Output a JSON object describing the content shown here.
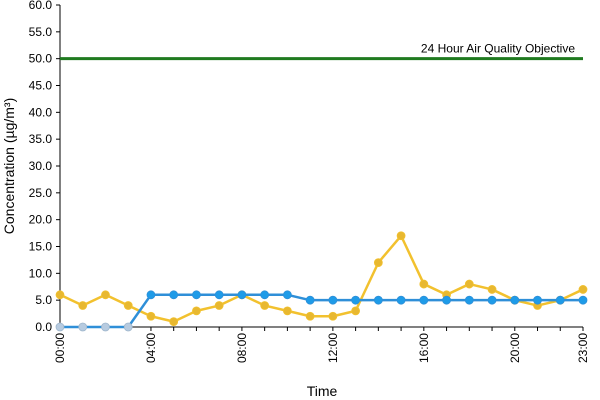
{
  "chart_data": {
    "type": "line",
    "xlabel": "Time",
    "ylabel": "Concentration (µg/m³)",
    "ylim": [
      0,
      60
    ],
    "y_ticks": [
      "0.0",
      "5.0",
      "10.0",
      "15.0",
      "20.0",
      "25.0",
      "30.0",
      "35.0",
      "40.0",
      "45.0",
      "50.0",
      "55.0",
      "60.0"
    ],
    "x": [
      "00:00",
      "01:00",
      "02:00",
      "03:00",
      "04:00",
      "05:00",
      "06:00",
      "07:00",
      "08:00",
      "09:00",
      "10:00",
      "11:00",
      "12:00",
      "13:00",
      "14:00",
      "15:00",
      "16:00",
      "17:00",
      "18:00",
      "19:00",
      "20:00",
      "21:00",
      "22:00",
      "23:00"
    ],
    "x_tick_labels": [
      "00:00",
      "04:00",
      "08:00",
      "12:00",
      "16:00",
      "20:00",
      "23:00"
    ],
    "grid": false,
    "legend": "none",
    "series": [
      {
        "color": "#f2c12e",
        "marker_color": "#e8b830",
        "values": [
          6,
          4,
          6,
          4,
          2,
          1,
          3,
          4,
          6,
          4,
          3,
          2,
          2,
          3,
          12,
          17,
          8,
          6,
          8,
          7,
          5,
          4,
          5,
          7
        ]
      },
      {
        "color": "#2f8fd8",
        "marker_color": "#1e9be8",
        "pale_marker_color": "#b7cbe0",
        "pale_points": [
          0,
          1,
          2,
          3
        ],
        "values": [
          0,
          0,
          0,
          0,
          6,
          6,
          6,
          6,
          6,
          6,
          6,
          5,
          5,
          5,
          5,
          5,
          5,
          5,
          5,
          5,
          5,
          5,
          5,
          5
        ]
      }
    ],
    "reference_line": {
      "value": 50,
      "label": "24 Hour Air Quality Objective",
      "color": "#1f7a1f"
    }
  }
}
